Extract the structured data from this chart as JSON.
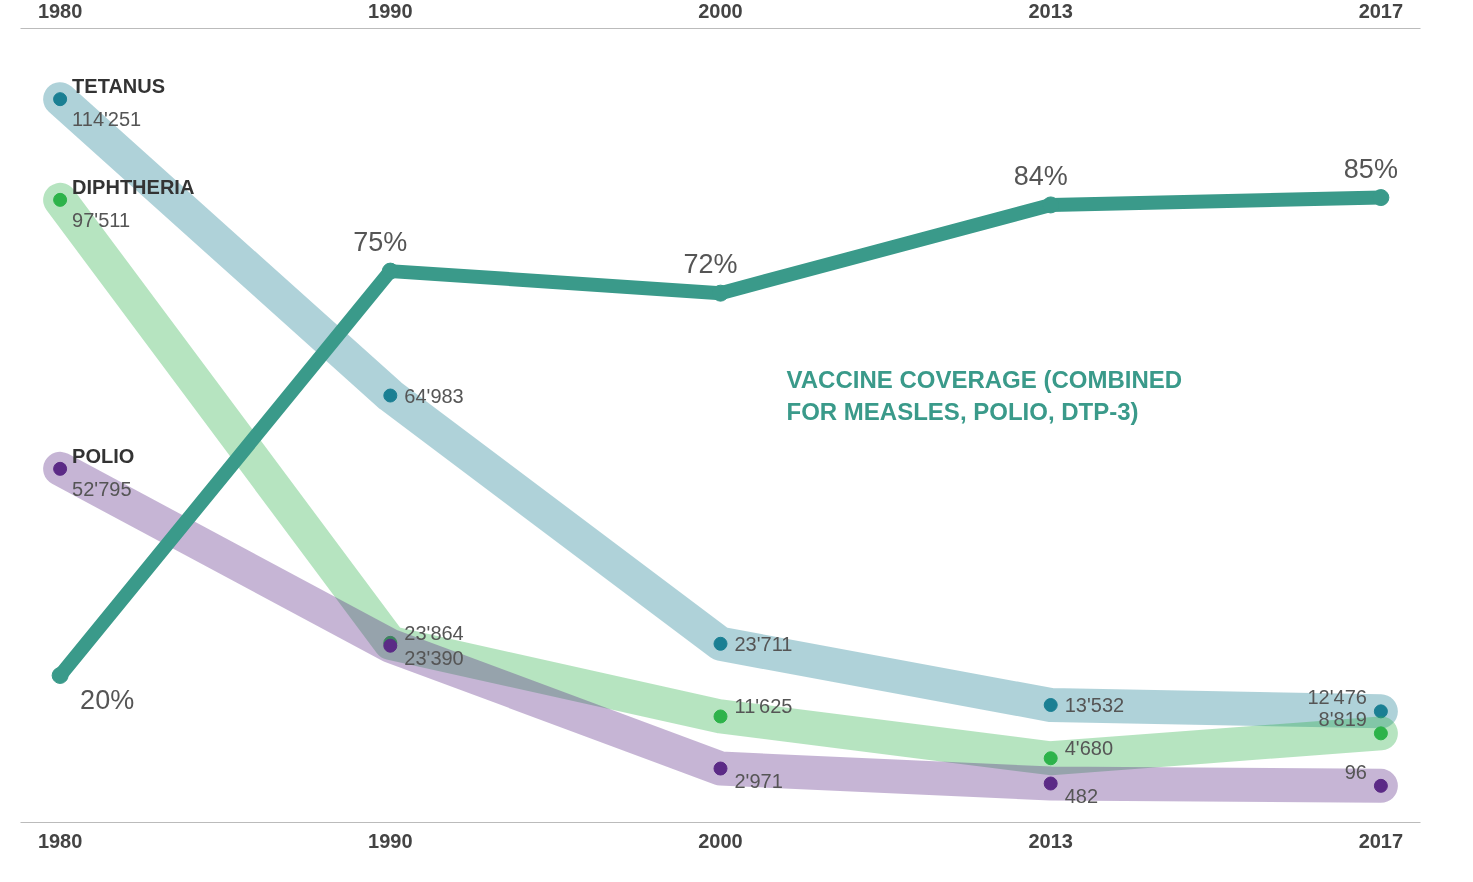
{
  "chart_data": {
    "type": "line",
    "categories": [
      "1980",
      "1990",
      "2000",
      "2013",
      "2017"
    ],
    "ylim": [
      -6000,
      126000
    ],
    "y2lim": [
      0,
      108
    ],
    "tick_labels": "x",
    "grid": false,
    "marker": "circle",
    "data_labels": true,
    "series": [
      {
        "name": "TETANUS",
        "color": "#1a7f93",
        "values": [
          114251,
          64983,
          23711,
          13532,
          12476
        ],
        "value_labels": [
          "114'251",
          "64'983",
          "23'711",
          "13'532",
          "12'476"
        ]
      },
      {
        "name": "DIPHTHERIA",
        "color": "#2db34a",
        "values": [
          97511,
          23864,
          11625,
          4680,
          8819
        ],
        "value_labels": [
          "97'511",
          "23'864",
          "11'625",
          "4'680",
          "8'819"
        ]
      },
      {
        "name": "POLIO",
        "color": "#5b2a86",
        "values": [
          52795,
          23390,
          2971,
          482,
          96
        ],
        "value_labels": [
          "52'795",
          "23'390",
          "2'971",
          "482",
          "96"
        ]
      },
      {
        "name": "VACCINE COVERAGE (COMBINED FOR MEASLES, POLIO, DTP-3)",
        "color": "#3a9a8a",
        "axis": "y2",
        "values": [
          20,
          75,
          72,
          84,
          85
        ],
        "value_labels": [
          "20%",
          "75%",
          "72%",
          "84%",
          "85%"
        ]
      }
    ]
  }
}
